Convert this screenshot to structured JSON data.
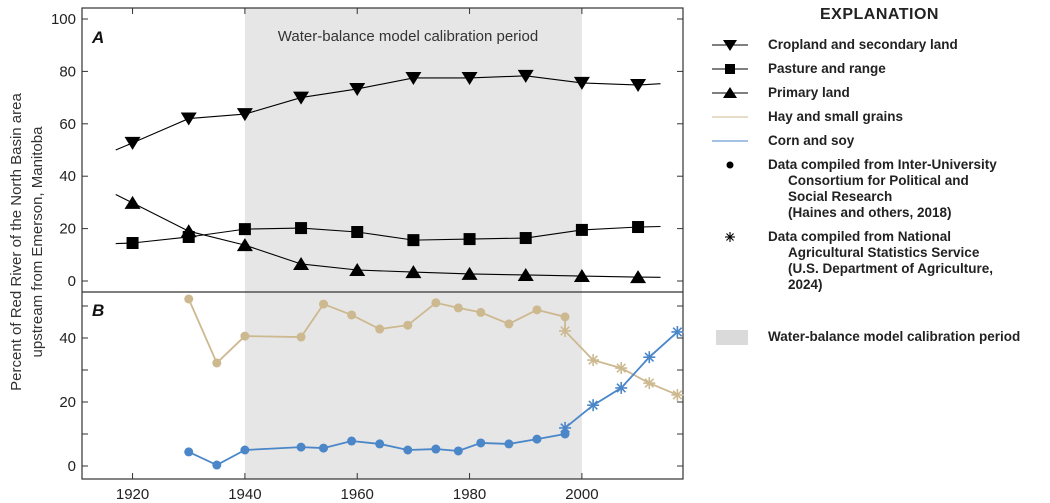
{
  "chart_data": [
    {
      "panel": "A",
      "type": "line",
      "title": "",
      "panel_label": "A",
      "xlabel": "",
      "ylabel": "Percent of Red River of the North Basin area upstream from Emerson, Manitoba",
      "xlim": [
        1911,
        2018
      ],
      "ylim": [
        -4,
        104
      ],
      "yticks": [
        0,
        20,
        40,
        60,
        80,
        100
      ],
      "xticks": [
        1920,
        1940,
        1960,
        1980,
        2000
      ],
      "grid": false,
      "shaded_region": {
        "label": "Water-balance model calibration period",
        "x": [
          1940,
          2000
        ]
      },
      "series": [
        {
          "name": "Cropland and secondary land",
          "marker": "triangle-down",
          "color": "#000000",
          "line_start": [
            1917,
            50
          ],
          "line_end": [
            2014,
            75.3
          ],
          "x": [
            1920,
            1930,
            1940,
            1950,
            1960,
            1970,
            1980,
            1990,
            2000,
            2010
          ],
          "values": [
            52.7,
            62,
            63.7,
            70,
            73.3,
            77.5,
            77.5,
            78.3,
            75.6,
            74.8
          ]
        },
        {
          "name": "Pasture and range",
          "marker": "square",
          "color": "#000000",
          "line_start": [
            1917,
            14.3
          ],
          "line_end": [
            2014,
            20.8
          ],
          "x": [
            1920,
            1930,
            1940,
            1950,
            1960,
            1970,
            1980,
            1990,
            2000,
            2010
          ],
          "values": [
            14.5,
            16.8,
            19.8,
            20.2,
            18.7,
            15.6,
            16,
            16.4,
            19.5,
            20.6
          ]
        },
        {
          "name": "Primary land",
          "marker": "triangle-up",
          "color": "#000000",
          "line_start": [
            1917,
            33
          ],
          "line_end": [
            2014,
            1.4
          ],
          "x": [
            1920,
            1930,
            1940,
            1950,
            1960,
            1970,
            1980,
            1990,
            2000,
            2010
          ],
          "values": [
            29.8,
            19,
            13.7,
            6.5,
            4.2,
            3.4,
            2.7,
            2.3,
            1.9,
            1.5
          ]
        }
      ]
    },
    {
      "panel": "B",
      "type": "line",
      "title": "",
      "panel_label": "B",
      "xlabel": "",
      "ylabel": "Percent of Red River of the North Basin area upstream from Emerson, Manitoba",
      "xlim": [
        1911,
        2018
      ],
      "ylim": [
        -4,
        54.5
      ],
      "yticks": [
        0,
        10,
        20,
        30,
        40,
        50
      ],
      "ytick_labels": {
        "0": "0",
        "20": "20",
        "40": "40"
      },
      "xticks": [
        1920,
        1940,
        1960,
        1980,
        2000
      ],
      "grid": false,
      "shaded_region": {
        "label": "Water-balance model calibration period",
        "x": [
          1940,
          2000
        ]
      },
      "series": [
        {
          "name": "Hay and small grains",
          "source": "Inter-University Consortium for Political and Social Research",
          "marker": "circle",
          "color": "#CDB990",
          "x": [
            1930,
            1935,
            1940,
            1950,
            1954,
            1959,
            1964,
            1969,
            1974,
            1978,
            1982,
            1987,
            1992,
            1997
          ],
          "values": [
            52.2,
            32.2,
            40.6,
            40.3,
            50.6,
            47.2,
            42.8,
            44,
            51,
            49.4,
            48,
            44.4,
            48.8,
            46.6
          ]
        },
        {
          "name": "Hay and small grains",
          "source": "National Agricultural Statistics Service",
          "marker": "asterisk",
          "color": "#CDB990",
          "x": [
            1997,
            2002,
            2007,
            2012,
            2017
          ],
          "values": [
            42.2,
            33.1,
            30.6,
            25.9,
            22.2
          ]
        },
        {
          "name": "Corn and soy",
          "source": "Inter-University Consortium for Political and Social Research",
          "marker": "circle",
          "color": "#4A86C8",
          "x": [
            1930,
            1935,
            1940,
            1950,
            1954,
            1959,
            1964,
            1969,
            1974,
            1978,
            1982,
            1987,
            1992,
            1997
          ],
          "values": [
            4.4,
            0.3,
            5,
            5.9,
            5.6,
            7.8,
            6.9,
            5,
            5.3,
            4.7,
            7.2,
            6.9,
            8.4,
            10
          ]
        },
        {
          "name": "Corn and soy",
          "source": "National Agricultural Statistics Service",
          "marker": "asterisk",
          "color": "#4A86C8",
          "x": [
            1997,
            2002,
            2007,
            2012,
            2017
          ],
          "values": [
            11.9,
            19,
            24.4,
            34,
            41.9
          ]
        }
      ]
    }
  ],
  "axis": {
    "ylabel_line1": "Percent of Red River of the North Basin area",
    "ylabel_line2": "upstream from Emerson, Manitoba",
    "xtick_labels": [
      "1920",
      "1940",
      "1960",
      "1980",
      "2000"
    ],
    "panelA_ytick_labels": [
      "0",
      "20",
      "40",
      "60",
      "80",
      "100"
    ],
    "panelB_ytick_labels": [
      "0",
      "20",
      "40"
    ],
    "panelA_label": "A",
    "panelB_label": "B",
    "calibration_label": "Water-balance model calibration period"
  },
  "colors": {
    "shade": "#E6E6E6",
    "hay": "#CDB990",
    "corn": "#4A86C8",
    "black": "#000000"
  },
  "legend": {
    "title": "EXPLANATION",
    "items": [
      {
        "symbol": "line-triangle-down",
        "label": "Cropland and secondary land"
      },
      {
        "symbol": "line-square",
        "label": "Pasture and range"
      },
      {
        "symbol": "line-triangle-up",
        "label": "Primary land"
      },
      {
        "symbol": "line-tan",
        "label": "Hay and small grains"
      },
      {
        "symbol": "line-blue",
        "label": "Corn and soy"
      },
      {
        "symbol": "dot",
        "label": "Data compiled from Inter-University",
        "cont": [
          "Consortium for Political and",
          "Social Research",
          "(Haines and others, 2018)"
        ]
      },
      {
        "symbol": "asterisk",
        "label": "Data compiled from National",
        "cont": [
          "Agricultural Statistics Service",
          "(U.S. Department of Agriculture,",
          "2024)"
        ]
      },
      {
        "symbol": "gray-box",
        "label": "Water-balance model calibration period"
      }
    ]
  }
}
